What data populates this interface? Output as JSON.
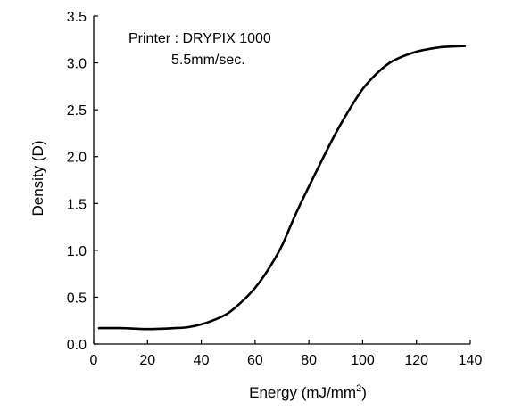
{
  "chart_data": {
    "type": "line",
    "xlabel": "Energy (mJ/mm",
    "xlabel_sup": "2",
    "xlabel_end": ")",
    "ylabel": "Density (D)",
    "xlim": [
      0,
      140
    ],
    "ylim": [
      0.0,
      3.5
    ],
    "x_ticks": [
      "0",
      "20",
      "40",
      "60",
      "80",
      "100",
      "120",
      "140"
    ],
    "y_ticks": [
      "0.0",
      "0.5",
      "1.0",
      "1.5",
      "2.0",
      "2.5",
      "3.0",
      "3.5"
    ],
    "annotation": {
      "line1": "Printer : DRYPIX 1000",
      "line2": "5.5mm/sec."
    },
    "grid": false,
    "series": [
      {
        "color": "#000000",
        "x": [
          2,
          10,
          20,
          30,
          35,
          40,
          45,
          50,
          55,
          60,
          65,
          70,
          75,
          80,
          85,
          90,
          95,
          100,
          105,
          110,
          115,
          120,
          125,
          130,
          138
        ],
        "y": [
          0.17,
          0.17,
          0.16,
          0.17,
          0.18,
          0.21,
          0.26,
          0.33,
          0.45,
          0.6,
          0.8,
          1.05,
          1.38,
          1.68,
          1.97,
          2.25,
          2.5,
          2.72,
          2.88,
          3.0,
          3.07,
          3.12,
          3.15,
          3.17,
          3.18
        ]
      }
    ]
  }
}
